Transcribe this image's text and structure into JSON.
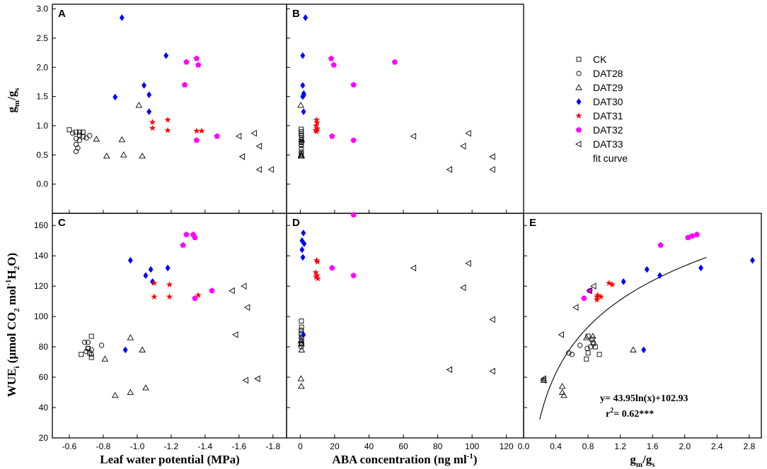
{
  "chart_data": {
    "type": "scatter",
    "colors": {
      "CK": "#000000",
      "DAT28": "#000000",
      "DAT29": "#000000",
      "DAT30": "#0000FF",
      "DAT31": "#FF0000",
      "DAT32": "#FF00FF",
      "DAT33": "#000000",
      "fit": "#000000"
    },
    "legend": {
      "position": "top-right",
      "items": [
        {
          "name": "CK",
          "marker": "square-open"
        },
        {
          "name": "DAT28",
          "marker": "circle-open"
        },
        {
          "name": "DAT29",
          "marker": "triangle-up-open"
        },
        {
          "name": "DAT30",
          "marker": "diamond-filled"
        },
        {
          "name": "DAT31",
          "marker": "star-filled"
        },
        {
          "name": "DAT32",
          "marker": "pentagon-filled"
        },
        {
          "name": "DAT33",
          "marker": "triangle-left-open"
        },
        {
          "name": "fit curve",
          "marker": "none"
        }
      ]
    },
    "axes": {
      "x1": {
        "label": "Leaf water potential (MPa)",
        "ticks": [
          -0.6,
          -0.8,
          -1.0,
          -1.2,
          -1.4,
          -1.6,
          -1.8
        ],
        "tick_labels": [
          "-0.6",
          "-0.8",
          "-1.0",
          "-1.2",
          "-1.4",
          "-1.6",
          "-1.8"
        ],
        "range": [
          -0.5,
          -1.88
        ]
      },
      "x2": {
        "label": "ABA concentration (ng ml",
        "label_sup": "-1",
        "label_end": ")",
        "ticks": [
          0,
          20,
          40,
          60,
          80,
          100,
          120
        ],
        "tick_labels": [
          "0",
          "20",
          "40",
          "60",
          "80",
          "100",
          "120"
        ],
        "range": [
          -8,
          130
        ]
      },
      "x3": {
        "label_main": "g",
        "label_sub1": "m",
        "label_slash": "/g",
        "label_sub2": "s",
        "ticks": [
          0,
          0.4,
          0.8,
          1.2,
          1.6,
          2.0,
          2.4,
          2.8
        ],
        "tick_labels": [
          "0.0",
          "0.4",
          "0.8",
          "1.2",
          "1.6",
          "2.0",
          "2.4",
          "2.8"
        ],
        "range": [
          0,
          2.95
        ]
      },
      "y_top": {
        "label_main": "g",
        "label_sub1": "m",
        "label_slash": "/g",
        "label_sub2": "s",
        "ticks": [
          0,
          0.5,
          1.0,
          1.5,
          2.0,
          2.5,
          3.0
        ],
        "tick_labels": [
          "0.0",
          "0.5",
          "1.0",
          "1.5",
          "2.0",
          "2.5",
          "3.0"
        ],
        "range": [
          -0.5,
          3.08
        ]
      },
      "y_bottom": {
        "label_a": "WUE",
        "label_a_sub": "i",
        "label_b": " (μmol CO",
        "label_b_sub": "2",
        "label_c": " mol",
        "label_c_sup": "-1",
        "label_d": "H",
        "label_d_sub": "2",
        "label_e": "O)",
        "ticks": [
          20,
          40,
          60,
          80,
          100,
          120,
          140,
          160
        ],
        "tick_labels": [
          "20",
          "40",
          "60",
          "80",
          "100",
          "120",
          "140",
          "160"
        ],
        "range": [
          20,
          168
        ]
      }
    },
    "panels": [
      {
        "id": "A",
        "x_axis": "x1",
        "y_axis": "y_top",
        "series": {
          "CK": [
            [
              -0.6,
              0.93
            ],
            [
              -0.64,
              0.89
            ],
            [
              -0.66,
              0.89
            ],
            [
              -0.68,
              0.89
            ],
            [
              -0.66,
              0.84
            ],
            [
              -0.68,
              0.81
            ]
          ],
          "DAT28": [
            [
              -0.62,
              0.87
            ],
            [
              -0.64,
              0.78
            ],
            [
              -0.66,
              0.75
            ],
            [
              -0.64,
              0.68
            ],
            [
              -0.65,
              0.62
            ],
            [
              -0.64,
              0.56
            ],
            [
              -0.72,
              0.83
            ],
            [
              -0.7,
              0.79
            ]
          ],
          "DAT29": [
            [
              -0.76,
              0.77
            ],
            [
              -0.82,
              0.48
            ],
            [
              -0.91,
              0.76
            ],
            [
              -0.92,
              0.5
            ],
            [
              -1.01,
              1.35
            ],
            [
              -1.03,
              0.48
            ]
          ],
          "DAT30": [
            [
              -0.91,
              2.85
            ],
            [
              -0.87,
              1.49
            ],
            [
              -1.04,
              1.69
            ],
            [
              -1.07,
              1.53
            ],
            [
              -1.07,
              1.24
            ],
            [
              -1.17,
              2.2
            ]
          ],
          "DAT31": [
            [
              -1.09,
              1.06
            ],
            [
              -1.09,
              0.96
            ],
            [
              -1.18,
              1.1
            ],
            [
              -1.18,
              0.92
            ],
            [
              -1.35,
              0.91
            ],
            [
              -1.38,
              0.91
            ]
          ],
          "DAT32": [
            [
              -1.28,
              1.7
            ],
            [
              -1.29,
              2.09
            ],
            [
              -1.35,
              2.15
            ],
            [
              -1.36,
              2.04
            ],
            [
              -1.35,
              0.75
            ],
            [
              -1.47,
              0.82
            ]
          ],
          "DAT33": [
            [
              -1.6,
              0.82
            ],
            [
              -1.62,
              0.47
            ],
            [
              -1.69,
              0.87
            ],
            [
              -1.72,
              0.65
            ],
            [
              -1.72,
              0.25
            ],
            [
              -1.79,
              0.25
            ]
          ]
        }
      },
      {
        "id": "B",
        "x_axis": "x2",
        "y_axis": "y_top",
        "series": {
          "CK": [
            [
              0.5,
              0.94
            ],
            [
              0.6,
              0.9
            ],
            [
              0.5,
              0.87
            ],
            [
              0.7,
              0.8
            ],
            [
              0.6,
              0.72
            ],
            [
              0.6,
              0.68
            ]
          ],
          "DAT28": [
            [
              0.6,
              0.84
            ],
            [
              0.6,
              0.77
            ],
            [
              0.7,
              0.71
            ],
            [
              0.6,
              0.66
            ],
            [
              0.6,
              0.6
            ],
            [
              0.6,
              0.55
            ],
            [
              0.6,
              0.52
            ]
          ],
          "DAT29": [
            [
              0.3,
              1.35
            ],
            [
              0.8,
              0.76
            ],
            [
              0.5,
              0.48
            ],
            [
              0.6,
              0.5
            ],
            [
              0.5,
              0.5
            ],
            [
              0.7,
              0.48
            ]
          ],
          "DAT30": [
            [
              3.0,
              2.85
            ],
            [
              1.4,
              2.2
            ],
            [
              1.4,
              1.69
            ],
            [
              2.0,
              1.55
            ],
            [
              1.4,
              1.5
            ],
            [
              2.0,
              1.52
            ],
            [
              1.9,
              1.24
            ]
          ],
          "DAT31": [
            [
              9.5,
              1.1
            ],
            [
              9.8,
              1.05
            ],
            [
              9.2,
              1.0
            ],
            [
              10.0,
              0.95
            ],
            [
              8.9,
              0.92
            ],
            [
              9.5,
              0.9
            ]
          ],
          "DAT32": [
            [
              18.0,
              2.15
            ],
            [
              19.5,
              2.04
            ],
            [
              31.0,
              1.7
            ],
            [
              18.5,
              0.82
            ],
            [
              31.0,
              0.75
            ],
            [
              55.0,
              2.09
            ]
          ],
          "DAT33": [
            [
              66.0,
              0.82
            ],
            [
              98.0,
              0.87
            ],
            [
              95.0,
              0.65
            ],
            [
              112.0,
              0.47
            ],
            [
              87.0,
              0.25
            ],
            [
              112.0,
              0.25
            ]
          ]
        }
      },
      {
        "id": "C",
        "x_axis": "x1",
        "y_axis": "y_bottom",
        "series": {
          "CK": [
            [
              -0.67,
              75
            ],
            [
              -0.73,
              87
            ],
            [
              -0.71,
              79
            ],
            [
              -0.72,
              76
            ],
            [
              -0.73,
              73
            ]
          ],
          "DAT28": [
            [
              -0.69,
              83
            ],
            [
              -0.71,
              83
            ],
            [
              -0.71,
              79
            ],
            [
              -0.7,
              77
            ],
            [
              -0.73,
              78
            ],
            [
              -0.73,
              75
            ],
            [
              -0.79,
              81
            ]
          ],
          "DAT29": [
            [
              -0.81,
              72
            ],
            [
              -0.87,
              48
            ],
            [
              -0.96,
              86
            ],
            [
              -0.96,
              50
            ],
            [
              -1.03,
              78
            ],
            [
              -1.05,
              53
            ]
          ],
          "DAT30": [
            [
              -0.96,
              137
            ],
            [
              -1.05,
              127
            ],
            [
              -1.08,
              131
            ],
            [
              -1.09,
              123
            ],
            [
              -1.18,
              132
            ],
            [
              -0.93,
              78
            ]
          ],
          "DAT31": [
            [
              -1.1,
              122
            ],
            [
              -1.1,
              113
            ],
            [
              -1.19,
              121
            ],
            [
              -1.19,
              113
            ],
            [
              -1.36,
              114
            ]
          ],
          "DAT32": [
            [
              -1.27,
              147
            ],
            [
              -1.29,
              154
            ],
            [
              -1.33,
              154
            ],
            [
              -1.34,
              152
            ],
            [
              -1.44,
              117
            ],
            [
              -1.34,
              112
            ]
          ],
          "DAT33": [
            [
              -1.56,
              117
            ],
            [
              -1.58,
              88
            ],
            [
              -1.63,
              120
            ],
            [
              -1.65,
              106
            ],
            [
              -1.64,
              58
            ],
            [
              -1.71,
              59
            ]
          ]
        }
      },
      {
        "id": "D",
        "x_axis": "x2",
        "y_axis": "y_bottom",
        "series": {
          "CK": [
            [
              0.6,
              97
            ],
            [
              0.7,
              93
            ],
            [
              0.6,
              89
            ],
            [
              0.7,
              85
            ],
            [
              0.6,
              82
            ]
          ],
          "DAT28": [
            [
              0.5,
              91
            ],
            [
              0.6,
              88
            ],
            [
              0.6,
              86
            ],
            [
              0.7,
              84
            ],
            [
              0.8,
              82
            ],
            [
              0.5,
              80
            ]
          ],
          "DAT29": [
            [
              0.4,
              59
            ],
            [
              0.6,
              54
            ],
            [
              0.6,
              82
            ],
            [
              0.8,
              78
            ],
            [
              0.4,
              84
            ]
          ],
          "DAT30": [
            [
              1.8,
              155
            ],
            [
              1.0,
              150
            ],
            [
              2.2,
              148
            ],
            [
              1.0,
              144
            ],
            [
              1.5,
              139
            ],
            [
              1.8,
              88
            ]
          ],
          "DAT31": [
            [
              9.5,
              137
            ],
            [
              10.0,
              136
            ],
            [
              9.0,
              129
            ],
            [
              9.8,
              127
            ],
            [
              9.2,
              126
            ],
            [
              10.2,
              125
            ]
          ],
          "DAT32": [
            [
              31.0,
              167
            ],
            [
              18.5,
              132
            ],
            [
              31.0,
              127
            ]
          ],
          "DAT33": [
            [
              66.0,
              132
            ],
            [
              98.0,
              135
            ],
            [
              95.0,
              119
            ],
            [
              112.0,
              98
            ],
            [
              87.0,
              65
            ],
            [
              112.0,
              64
            ]
          ]
        }
      },
      {
        "id": "E",
        "x_axis": "x3",
        "y_axis": "y_bottom",
        "fit": {
          "a": 43.95,
          "b": 102.93,
          "x_range": [
            0.2,
            2.27
          ],
          "equation": "y= 43.95ln(x)+102.93",
          "r2_text": "r",
          "r2_sup": "2",
          "r2_value": "= 0.62***"
        },
        "series": {
          "CK": [
            [
              0.8,
              87
            ],
            [
              0.85,
              85
            ],
            [
              0.89,
              80
            ],
            [
              0.8,
              76
            ],
            [
              0.78,
              72
            ],
            [
              0.94,
              75
            ]
          ],
          "DAT28": [
            [
              0.56,
              76
            ],
            [
              0.6,
              75
            ],
            [
              0.7,
              81
            ],
            [
              0.79,
              79
            ],
            [
              0.83,
              80
            ],
            [
              0.87,
              82
            ],
            [
              0.86,
              83
            ]
          ],
          "DAT29": [
            [
              0.25,
              58
            ],
            [
              0.48,
              54
            ],
            [
              0.48,
              50
            ],
            [
              0.5,
              48
            ],
            [
              0.78,
              86
            ],
            [
              0.86,
              87
            ],
            [
              1.36,
              78
            ]
          ],
          "DAT30": [
            [
              2.84,
              137
            ],
            [
              2.2,
              132
            ],
            [
              1.53,
              131
            ],
            [
              1.69,
              127
            ],
            [
              1.24,
              123
            ],
            [
              1.49,
              78
            ]
          ],
          "DAT31": [
            [
              1.06,
              122
            ],
            [
              1.1,
              121
            ],
            [
              0.92,
              114
            ],
            [
              0.96,
              113
            ],
            [
              0.91,
              113
            ],
            [
              0.91,
              111
            ]
          ],
          "DAT32": [
            [
              1.7,
              147
            ],
            [
              2.04,
              152
            ],
            [
              2.09,
              153
            ],
            [
              2.15,
              154
            ],
            [
              0.82,
              117
            ],
            [
              0.75,
              112
            ]
          ],
          "DAT33": [
            [
              0.82,
              117
            ],
            [
              0.87,
              120
            ],
            [
              0.65,
              106
            ],
            [
              0.47,
              88
            ],
            [
              0.25,
              59
            ],
            [
              0.25,
              58
            ]
          ]
        }
      }
    ]
  }
}
